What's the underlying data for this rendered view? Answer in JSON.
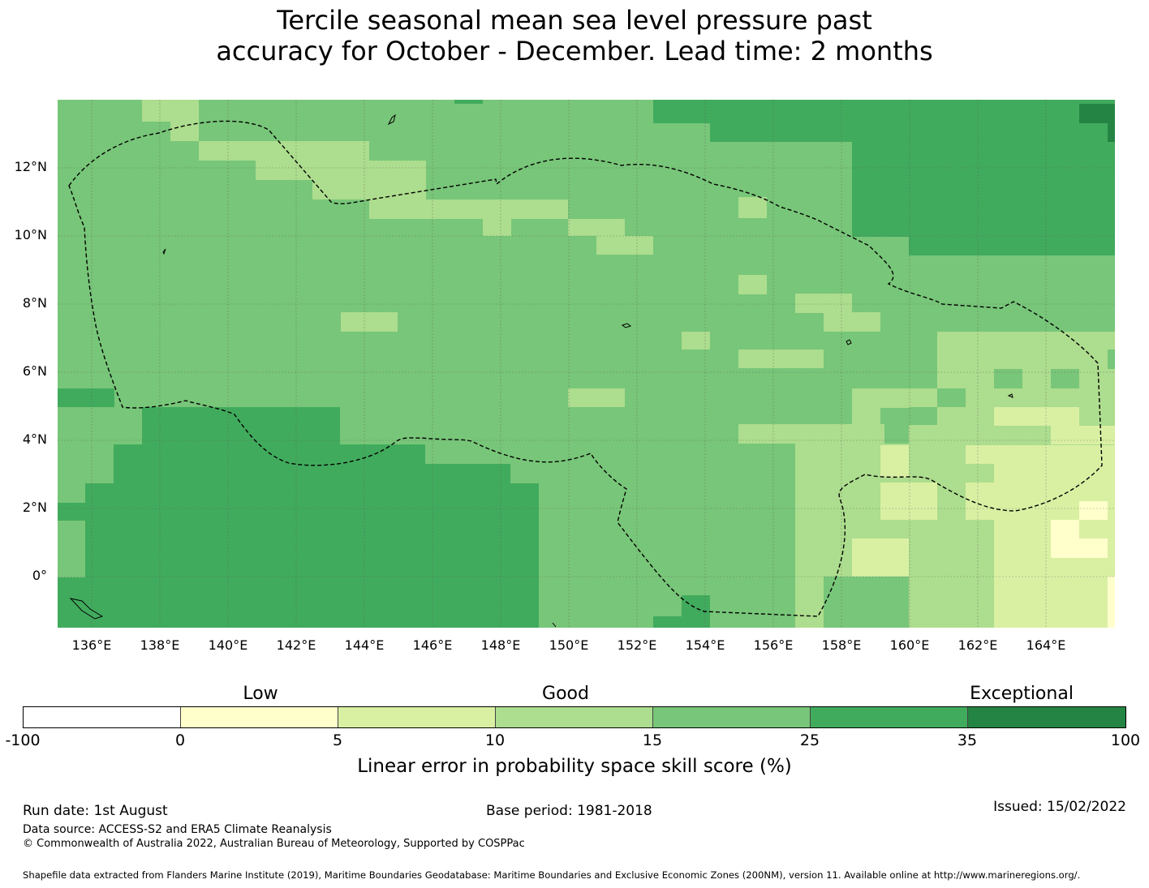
{
  "title_line1": "Tercile seasonal mean sea level pressure past",
  "title_line2": "accuracy for October - December. Lead time: 2 months",
  "map": {
    "lat_labels": [
      "12°N",
      "10°N",
      "8°N",
      "6°N",
      "4°N",
      "2°N",
      "0°"
    ],
    "lon_labels": [
      "136°E",
      "138°E",
      "140°E",
      "142°E",
      "144°E",
      "146°E",
      "148°E",
      "150°E",
      "152°E",
      "154°E",
      "156°E",
      "158°E",
      "160°E",
      "162°E",
      "164°E"
    ],
    "lon_range": [
      135.0,
      166.0
    ],
    "lat_range": [
      -1.5,
      14.0
    ],
    "gridlines": true,
    "region_outline": "dashed EEZ boundary"
  },
  "legend": {
    "categories": [
      "Low",
      "Good",
      "Exceptional"
    ],
    "ticks": [
      "-100",
      "0",
      "5",
      "10",
      "15",
      "25",
      "35",
      "100"
    ],
    "colors": [
      "#ffffff",
      "#ffffcc",
      "#d9f0a3",
      "#addd8e",
      "#78c679",
      "#41ab5d",
      "#238443"
    ],
    "label": "Linear error in probability space skill score (%)"
  },
  "footer": {
    "run_date": "Run date: 1st August",
    "base_period": "Base period: 1981-2018",
    "issued": "Issued: 15/02/2022",
    "data_source": "Data source: ACCESS-S2 and ERA5 Climate Reanalysis",
    "copyright": "© Commonwealth of Australia 2022, Australian Bureau of Meteorology, Supported by COSPPac",
    "shapefile": "Shapefile data extracted from Flanders Marine Institute (2019), Maritime Boundaries Geodatabase: Maritime Boundaries and Exclusive Economic Zones (200NM), version 11. Available online at http://www.marineregions.org/."
  }
}
